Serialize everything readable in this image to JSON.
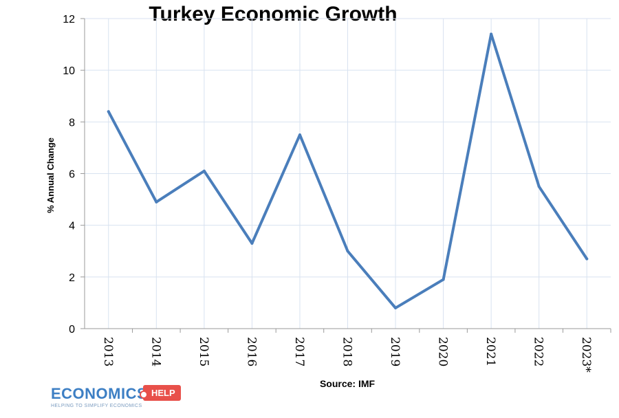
{
  "chart_data": {
    "type": "line",
    "title": "Turkey Economic Growth",
    "ylabel": "% Annual Change",
    "xlabel": "Source: IMF",
    "categories": [
      "2013",
      "2014",
      "2015",
      "2016",
      "2017",
      "2018",
      "2019",
      "2020",
      "2021",
      "2022",
      "2023*"
    ],
    "series": [
      {
        "values": [
          8.4,
          4.9,
          6.1,
          3.3,
          7.5,
          3.0,
          0.8,
          1.9,
          11.4,
          5.5,
          2.7
        ]
      }
    ],
    "ylim": [
      0,
      12
    ],
    "yticks": [
      0,
      2,
      4,
      6,
      8,
      10,
      12
    ],
    "grid": true,
    "legend": "none",
    "line_color": "#4a7ebb",
    "grid_color": "#d8e2f0"
  },
  "logo": {
    "word": "ECONOMICS",
    "badge": "HELP",
    "tagline": "HELPING TO SIMPLIFY ECONOMICS",
    "word_color": "#3d7fc4",
    "badge_color": "#e8504a"
  }
}
